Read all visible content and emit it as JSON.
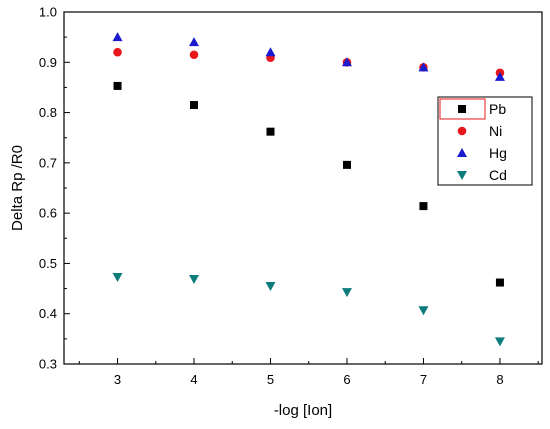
{
  "chart_data": {
    "type": "scatter",
    "xlabel": "-log [Ion]",
    "ylabel": "Delta Rp /R0",
    "xlim": [
      2.3,
      8.55
    ],
    "ylim": [
      0.3,
      1.0
    ],
    "x_ticks": [
      3,
      4,
      5,
      6,
      7,
      8
    ],
    "y_ticks": [
      0.3,
      0.4,
      0.5,
      0.6,
      0.7,
      0.8,
      0.9,
      1.0
    ],
    "x_tick_labels": [
      "3",
      "4",
      "5",
      "6",
      "7",
      "8"
    ],
    "y_tick_labels": [
      "0.3",
      "0.4",
      "0.5",
      "0.6",
      "0.7",
      "0.8",
      "0.9",
      "1.0"
    ],
    "grid": false,
    "legend_position": "right",
    "x": [
      3,
      4,
      5,
      6,
      7,
      8
    ],
    "series": [
      {
        "name": "Pb",
        "marker": "square",
        "color": "#000000",
        "values": [
          0.853,
          0.815,
          0.762,
          0.696,
          0.614,
          0.462
        ]
      },
      {
        "name": "Ni",
        "marker": "circle",
        "color": "#e8171b",
        "values": [
          0.92,
          0.915,
          0.909,
          0.9,
          0.89,
          0.879
        ]
      },
      {
        "name": "Hg",
        "marker": "triangle-up",
        "color": "#1a1acf",
        "values": [
          0.95,
          0.94,
          0.92,
          0.9,
          0.89,
          0.871
        ]
      },
      {
        "name": "Cd",
        "marker": "triangle-down",
        "color": "#0f7c7c",
        "values": [
          0.473,
          0.469,
          0.455,
          0.443,
          0.407,
          0.345
        ]
      }
    ]
  }
}
